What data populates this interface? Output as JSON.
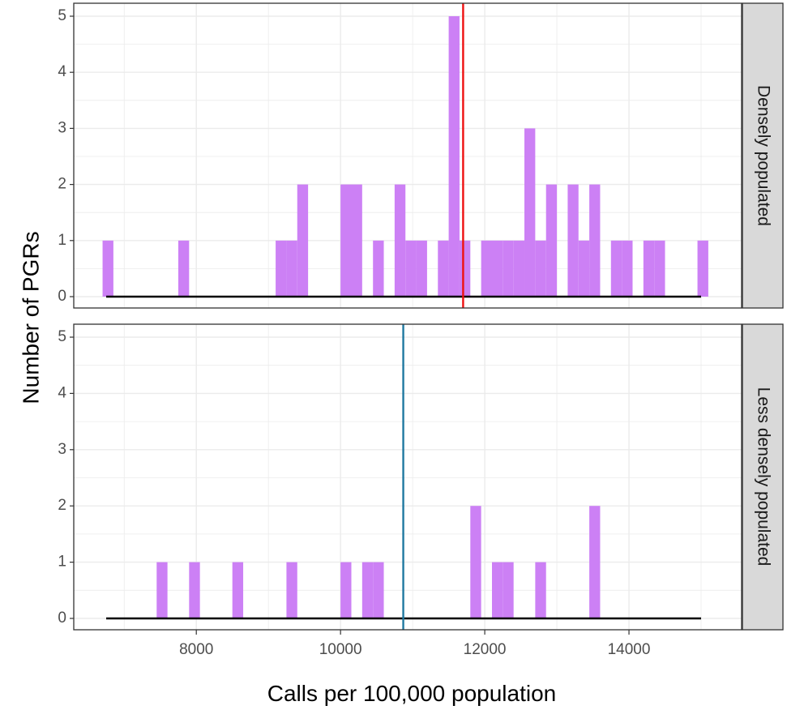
{
  "chart_data": {
    "type": "bar",
    "subtype": "faceted-histogram",
    "xlabel": "Calls per 100,000 population",
    "ylabel": "Number of PGRs",
    "xlim": [
      6500,
      15100
    ],
    "ylim": [
      0,
      5
    ],
    "x_ticks": [
      8000,
      10000,
      12000,
      14000
    ],
    "y_ticks": [
      0,
      1,
      2,
      3,
      4,
      5
    ],
    "bin_width": 150,
    "grid": true,
    "theme": "bw",
    "bar_color": "#cc80f5",
    "baseline_color": "#000000",
    "facets": [
      {
        "label": "Densely populated",
        "reference_line": {
          "x": 11700,
          "color": "#ee1111"
        },
        "bins": [
          {
            "x": 6775,
            "count": 1
          },
          {
            "x": 7825,
            "count": 1
          },
          {
            "x": 9175,
            "count": 1
          },
          {
            "x": 9325,
            "count": 1
          },
          {
            "x": 9475,
            "count": 2
          },
          {
            "x": 10075,
            "count": 2
          },
          {
            "x": 10225,
            "count": 2
          },
          {
            "x": 10525,
            "count": 1
          },
          {
            "x": 10825,
            "count": 2
          },
          {
            "x": 10975,
            "count": 1
          },
          {
            "x": 11125,
            "count": 1
          },
          {
            "x": 11425,
            "count": 1
          },
          {
            "x": 11575,
            "count": 5
          },
          {
            "x": 11725,
            "count": 1
          },
          {
            "x": 12025,
            "count": 1
          },
          {
            "x": 12175,
            "count": 1
          },
          {
            "x": 12325,
            "count": 1
          },
          {
            "x": 12475,
            "count": 1
          },
          {
            "x": 12625,
            "count": 3
          },
          {
            "x": 12775,
            "count": 1
          },
          {
            "x": 12925,
            "count": 2
          },
          {
            "x": 13225,
            "count": 2
          },
          {
            "x": 13375,
            "count": 1
          },
          {
            "x": 13525,
            "count": 2
          },
          {
            "x": 13825,
            "count": 1
          },
          {
            "x": 13975,
            "count": 1
          },
          {
            "x": 14275,
            "count": 1
          },
          {
            "x": 14425,
            "count": 1
          },
          {
            "x": 15025,
            "count": 1
          }
        ]
      },
      {
        "label": "Less densely populated",
        "reference_line": {
          "x": 10870,
          "color": "#1f78a0"
        },
        "bins": [
          {
            "x": 7525,
            "count": 1
          },
          {
            "x": 7975,
            "count": 1
          },
          {
            "x": 8575,
            "count": 1
          },
          {
            "x": 9325,
            "count": 1
          },
          {
            "x": 10075,
            "count": 1
          },
          {
            "x": 10375,
            "count": 1
          },
          {
            "x": 10525,
            "count": 1
          },
          {
            "x": 11875,
            "count": 2
          },
          {
            "x": 12175,
            "count": 1
          },
          {
            "x": 12325,
            "count": 1
          },
          {
            "x": 12775,
            "count": 1
          },
          {
            "x": 13525,
            "count": 2
          }
        ]
      }
    ]
  }
}
